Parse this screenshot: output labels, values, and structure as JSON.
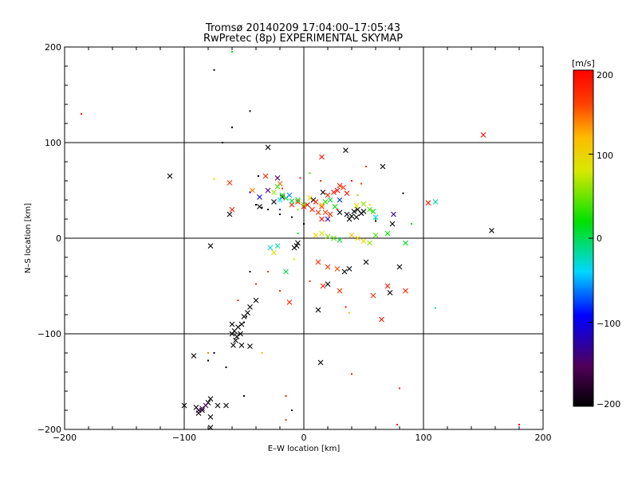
{
  "chart_data": {
    "type": "scatter",
    "title": "Tromsø 20140209 17:04:00–17:05:43",
    "subtitle": "RwPretec (8p) EXPERIMENTAL SKYMAP",
    "xlabel": "E–W location [km]",
    "ylabel": "N–S location [km]",
    "xlim": [
      -200,
      200
    ],
    "ylim": [
      -200,
      200
    ],
    "x_ticks": [
      -200,
      -100,
      0,
      100,
      200
    ],
    "y_ticks": [
      -200,
      -100,
      0,
      100,
      200
    ],
    "x_tick_labels": [
      "−200",
      "−100",
      "0",
      "100",
      "200"
    ],
    "y_tick_labels": [
      "−200",
      "−100",
      "0",
      "100",
      "200"
    ],
    "grid": "at ±100 km and 0",
    "colorbar": {
      "label": "[m/s]",
      "range": [
        -200,
        200
      ],
      "ticks": [
        200,
        100,
        0,
        -100,
        -200
      ],
      "tick_labels": [
        "200",
        "100",
        "0",
        "−100",
        "−200"
      ],
      "scale": "black-purple-blue-cyan-green-yellow-red"
    },
    "series": [
      {
        "marker": "cross",
        "points": [
          [
            -112,
            65,
            -200
          ],
          [
            -78,
            -8,
            -200
          ],
          [
            -62,
            25,
            -200
          ],
          [
            -30,
            95,
            -200
          ],
          [
            35,
            92,
            -200
          ],
          [
            66,
            75,
            -200
          ],
          [
            -25,
            38,
            -200
          ],
          [
            -18,
            43,
            -200
          ],
          [
            -37,
            33,
            -200
          ],
          [
            8,
            40,
            -200
          ],
          [
            16,
            48,
            -200
          ],
          [
            30,
            27,
            -200
          ],
          [
            36,
            25,
            -200
          ],
          [
            40,
            23,
            -200
          ],
          [
            42,
            28,
            -200
          ],
          [
            45,
            30,
            -200
          ],
          [
            48,
            26,
            -200
          ],
          [
            44,
            22,
            -200
          ],
          [
            38,
            20,
            -200
          ],
          [
            50,
            28,
            -200
          ],
          [
            157,
            8,
            -200
          ],
          [
            74,
            15,
            -200
          ],
          [
            -5,
            -5,
            -200
          ],
          [
            -8,
            -10,
            -200
          ],
          [
            -6,
            -8,
            -200
          ],
          [
            34,
            -35,
            -200
          ],
          [
            38,
            -32,
            -200
          ],
          [
            52,
            -25,
            -200
          ],
          [
            12,
            -75,
            -200
          ],
          [
            -40,
            -65,
            -200
          ],
          [
            -45,
            -72,
            -200
          ],
          [
            -47,
            -78,
            -200
          ],
          [
            -50,
            -82,
            -200
          ],
          [
            -52,
            -90,
            -200
          ],
          [
            -55,
            -93,
            -200
          ],
          [
            -58,
            -97,
            -200
          ],
          [
            -56,
            -103,
            -200
          ],
          [
            -53,
            -100,
            -200
          ],
          [
            -60,
            -100,
            -200
          ],
          [
            -57,
            -107,
            -200
          ],
          [
            -52,
            -112,
            -200
          ],
          [
            -59,
            -112,
            -200
          ],
          [
            -45,
            -113,
            -200
          ],
          [
            -60,
            -90,
            -200
          ],
          [
            -92,
            -123,
            -200
          ],
          [
            -100,
            -175,
            -200
          ],
          [
            -90,
            -177,
            -200
          ],
          [
            -88,
            -183,
            -200
          ],
          [
            -85,
            -180,
            -200
          ],
          [
            -80,
            -172,
            -200
          ],
          [
            -72,
            -175,
            -200
          ],
          [
            -65,
            -175,
            -200
          ],
          [
            -78,
            -168,
            -200
          ],
          [
            -78,
            -187,
            -200
          ],
          [
            -78,
            -198,
            -200
          ],
          [
            80,
            -30,
            -200
          ],
          [
            72,
            -57,
            -200
          ],
          [
            14,
            -130,
            -200
          ],
          [
            20,
            -48,
            -200
          ],
          [
            -88,
            -180,
            -175
          ],
          [
            -85,
            -178,
            -160
          ],
          [
            -82,
            -175,
            -150
          ],
          [
            -22,
            63,
            -160
          ],
          [
            -30,
            50,
            -150
          ],
          [
            -60,
            30,
            180
          ],
          [
            -10,
            35,
            175
          ],
          [
            -5,
            38,
            180
          ],
          [
            0,
            33,
            190
          ],
          [
            3,
            35,
            200
          ],
          [
            7,
            30,
            180
          ],
          [
            10,
            38,
            190
          ],
          [
            15,
            33,
            170
          ],
          [
            20,
            45,
            180
          ],
          [
            25,
            48,
            190
          ],
          [
            28,
            50,
            200
          ],
          [
            30,
            55,
            180
          ],
          [
            33,
            53,
            170
          ],
          [
            36,
            47,
            190
          ],
          [
            -32,
            65,
            180
          ],
          [
            -20,
            57,
            150
          ],
          [
            15,
            85,
            190
          ],
          [
            -62,
            58,
            170
          ],
          [
            -43,
            50,
            140
          ],
          [
            150,
            108,
            195
          ],
          [
            104,
            37,
            190
          ],
          [
            20,
            -30,
            170
          ],
          [
            12,
            -25,
            175
          ],
          [
            22,
            25,
            180
          ],
          [
            15,
            20,
            190
          ],
          [
            18,
            27,
            160
          ],
          [
            12,
            27,
            170
          ],
          [
            -12,
            -67,
            180
          ],
          [
            30,
            -55,
            170
          ],
          [
            28,
            -32,
            160
          ],
          [
            16,
            -50,
            180
          ],
          [
            58,
            -60,
            170
          ],
          [
            70,
            -50,
            190
          ],
          [
            85,
            -55,
            180
          ],
          [
            65,
            -85,
            190
          ],
          [
            -25,
            48,
            60
          ],
          [
            -22,
            54,
            40
          ],
          [
            -18,
            45,
            20
          ],
          [
            -15,
            42,
            10
          ],
          [
            -10,
            39,
            5
          ],
          [
            -5,
            40,
            15
          ],
          [
            0,
            35,
            50
          ],
          [
            5,
            42,
            100
          ],
          [
            15,
            35,
            110
          ],
          [
            18,
            38,
            30
          ],
          [
            22,
            40,
            10
          ],
          [
            26,
            33,
            20
          ],
          [
            44,
            34,
            80
          ],
          [
            50,
            36,
            60
          ],
          [
            55,
            30,
            40
          ],
          [
            58,
            28,
            20
          ],
          [
            10,
            3,
            100
          ],
          [
            15,
            5,
            80
          ],
          [
            20,
            2,
            60
          ],
          [
            25,
            0,
            40
          ],
          [
            30,
            -2,
            10
          ],
          [
            40,
            3,
            110
          ],
          [
            45,
            0,
            100
          ],
          [
            50,
            -3,
            90
          ],
          [
            55,
            -5,
            60
          ],
          [
            60,
            3,
            40
          ],
          [
            70,
            5,
            20
          ],
          [
            85,
            -5,
            10
          ],
          [
            -15,
            -35,
            0
          ],
          [
            -22,
            -8,
            -20
          ],
          [
            -28,
            -10,
            -30
          ],
          [
            -25,
            -15,
            90
          ],
          [
            110,
            38,
            -20
          ],
          [
            -12,
            45,
            -60
          ],
          [
            -20,
            40,
            -40
          ],
          [
            30,
            40,
            -80
          ],
          [
            20,
            20,
            -120
          ],
          [
            -37,
            43,
            -100
          ],
          [
            60,
            22,
            -40
          ],
          [
            75,
            25,
            -130
          ]
        ]
      },
      {
        "marker": "dot",
        "points": [
          [
            -75,
            176,
            -200
          ],
          [
            -45,
            133,
            -200
          ],
          [
            -60,
            116,
            -200
          ],
          [
            -68,
            100,
            -200
          ],
          [
            -38,
            65,
            -200
          ],
          [
            -40,
            35,
            -200
          ],
          [
            -35,
            32,
            -200
          ],
          [
            -30,
            30,
            -200
          ],
          [
            -20,
            25,
            -200
          ],
          [
            -10,
            22,
            -200
          ],
          [
            0,
            15,
            -200
          ],
          [
            -5,
            5,
            -200
          ],
          [
            -45,
            -35,
            -200
          ],
          [
            -48,
            -82,
            -200
          ],
          [
            -50,
            -88,
            -200
          ],
          [
            -75,
            -120,
            -200
          ],
          [
            -80,
            -128,
            -200
          ],
          [
            -65,
            -135,
            -200
          ],
          [
            -50,
            -165,
            -200
          ],
          [
            -10,
            -180,
            -200
          ],
          [
            83,
            47,
            -200
          ],
          [
            60,
            18,
            -200
          ],
          [
            -186,
            130,
            180
          ],
          [
            -18,
            52,
            170
          ],
          [
            -3,
            63,
            180
          ],
          [
            40,
            60,
            190
          ],
          [
            48,
            57,
            170
          ],
          [
            52,
            75,
            180
          ],
          [
            14,
            60,
            175
          ],
          [
            10,
            38,
            160
          ],
          [
            28,
            30,
            170
          ],
          [
            -55,
            -65,
            190
          ],
          [
            -40,
            -48,
            180
          ],
          [
            -30,
            -35,
            170
          ],
          [
            -35,
            -120,
            190
          ],
          [
            -15,
            -165,
            180
          ],
          [
            -15,
            -190,
            170
          ],
          [
            40,
            -142,
            190
          ],
          [
            80,
            -157,
            175
          ],
          [
            78,
            -195,
            180
          ],
          [
            180,
            -195,
            190
          ],
          [
            35,
            -72,
            190
          ],
          [
            5,
            -45,
            170
          ],
          [
            -20,
            -55,
            180
          ],
          [
            -75,
            62,
            100
          ],
          [
            -20,
            30,
            100
          ],
          [
            5,
            68,
            40
          ],
          [
            45,
            45,
            60
          ],
          [
            55,
            35,
            90
          ],
          [
            90,
            15,
            20
          ],
          [
            -60,
            195,
            20
          ],
          [
            -5,
            5,
            10
          ],
          [
            60,
            20,
            0
          ],
          [
            110,
            -73,
            -10
          ],
          [
            -35,
            -120,
            120
          ],
          [
            -80,
            -120,
            140
          ],
          [
            -8,
            -22,
            80
          ],
          [
            38,
            -78,
            110
          ],
          [
            -20,
            30,
            -80
          ],
          [
            -45,
            48,
            -110
          ],
          [
            -5,
            30,
            60
          ]
        ]
      }
    ]
  }
}
